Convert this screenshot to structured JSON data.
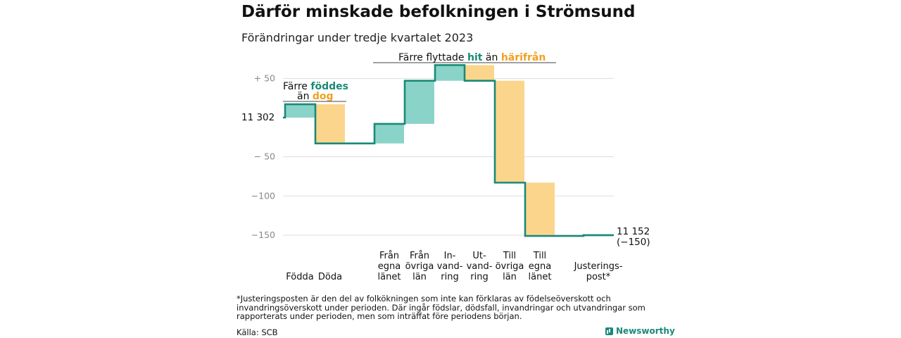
{
  "title": "Därför minskade befolkningen i Strömsund",
  "subtitle": "Förändringar under tredje kvartalet 2023",
  "footnote": "*Justeringsposten är den del av folkökningen som inte kan förklaras av födelseöverskott och invandringsöverskott under perioden. Där ingår födslar, dödsfall, invandringar och utvandringar som rapporterats under perioden, men som inträffat före periodens början.",
  "source": "Källa: SCB",
  "brand": "Newsworthy",
  "colors": {
    "positive": "#8ad3c8",
    "negative": "#fbd58c",
    "line": "#1a8a78",
    "accent_teal": "#1a8a78",
    "accent_orange": "#f0a020",
    "grid": "#dddddd"
  },
  "chart_data": {
    "type": "waterfall",
    "start_value": 11302,
    "start_label": "11  302",
    "end_label_line1": "11 152",
    "end_label_line2": "(−150)",
    "y_ticks": [
      {
        "value": 50,
        "label": "+   50"
      },
      {
        "value": -50,
        "label": "−   50"
      },
      {
        "value": -100,
        "label": "−100"
      },
      {
        "value": -150,
        "label": "−150"
      }
    ],
    "ylim": [
      -150,
      60
    ],
    "steps": [
      {
        "label": [
          "Födda"
        ],
        "delta": 17
      },
      {
        "label": [
          "Döda"
        ],
        "delta": -50
      },
      {
        "label": [
          "Från",
          "egna",
          "länet"
        ],
        "delta": 25
      },
      {
        "label": [
          "Från",
          "övriga",
          "län"
        ],
        "delta": 55
      },
      {
        "label": [
          "In-",
          "vand-",
          "ring"
        ],
        "delta": 20
      },
      {
        "label": [
          "Ut-",
          "vand-",
          "ring"
        ],
        "delta": -20
      },
      {
        "label": [
          "Till",
          "övriga",
          "län"
        ],
        "delta": -130
      },
      {
        "label": [
          "Till",
          "egna",
          "länet"
        ],
        "delta": -68
      },
      {
        "label": [
          "Justerings-",
          "post*"
        ],
        "delta": 1
      }
    ],
    "annotations": [
      {
        "id": "births",
        "line1": "Färre",
        "teal": "föddes",
        "line2": "än",
        "orange": "dog"
      },
      {
        "id": "migration",
        "pre": "Färre flyttade",
        "teal": "hit",
        "mid": "än",
        "orange": "härifrån"
      }
    ]
  }
}
